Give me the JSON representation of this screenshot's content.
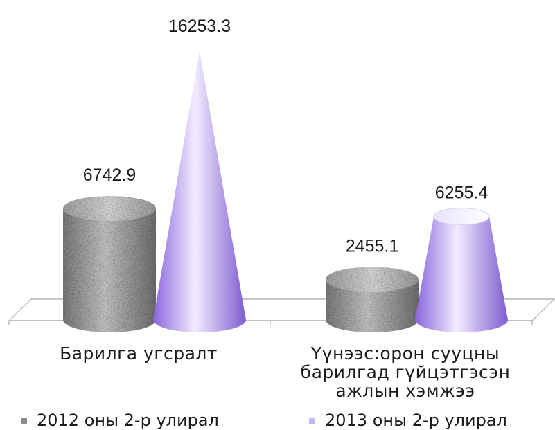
{
  "chart_data": {
    "type": "bar",
    "style": "3d-cylinder-cone",
    "categories": [
      "Барилга угсралт",
      "Үүнээс:орон сууцны барилгад гүйцэтгэсэн ажлын хэмжээ"
    ],
    "series": [
      {
        "name": "2012 оны 2-р улирал",
        "values": [
          6742.9,
          2455.1
        ],
        "color": "#8c8c8c",
        "shape": "cylinder"
      },
      {
        "name": "2013 оны 2-р улирал",
        "values": [
          16253.3,
          6255.4
        ],
        "color": "#c8b8f0",
        "shape": "cone"
      }
    ],
    "value_labels": [
      "6742.9",
      "2455.1",
      "16253.3",
      "6255.4"
    ],
    "ylim": [
      0,
      16253.3
    ],
    "grid": false,
    "legend_position": "bottom"
  },
  "category_labels": [
    "Барилга угсралт",
    "Үүнээс:орон сууцны барилгад гүйцэтгэсэн ажлын хэмжээ"
  ],
  "legend": {
    "s1": "2012 оны 2-р улирал",
    "s2": "2013 оны 2-р улирал"
  }
}
